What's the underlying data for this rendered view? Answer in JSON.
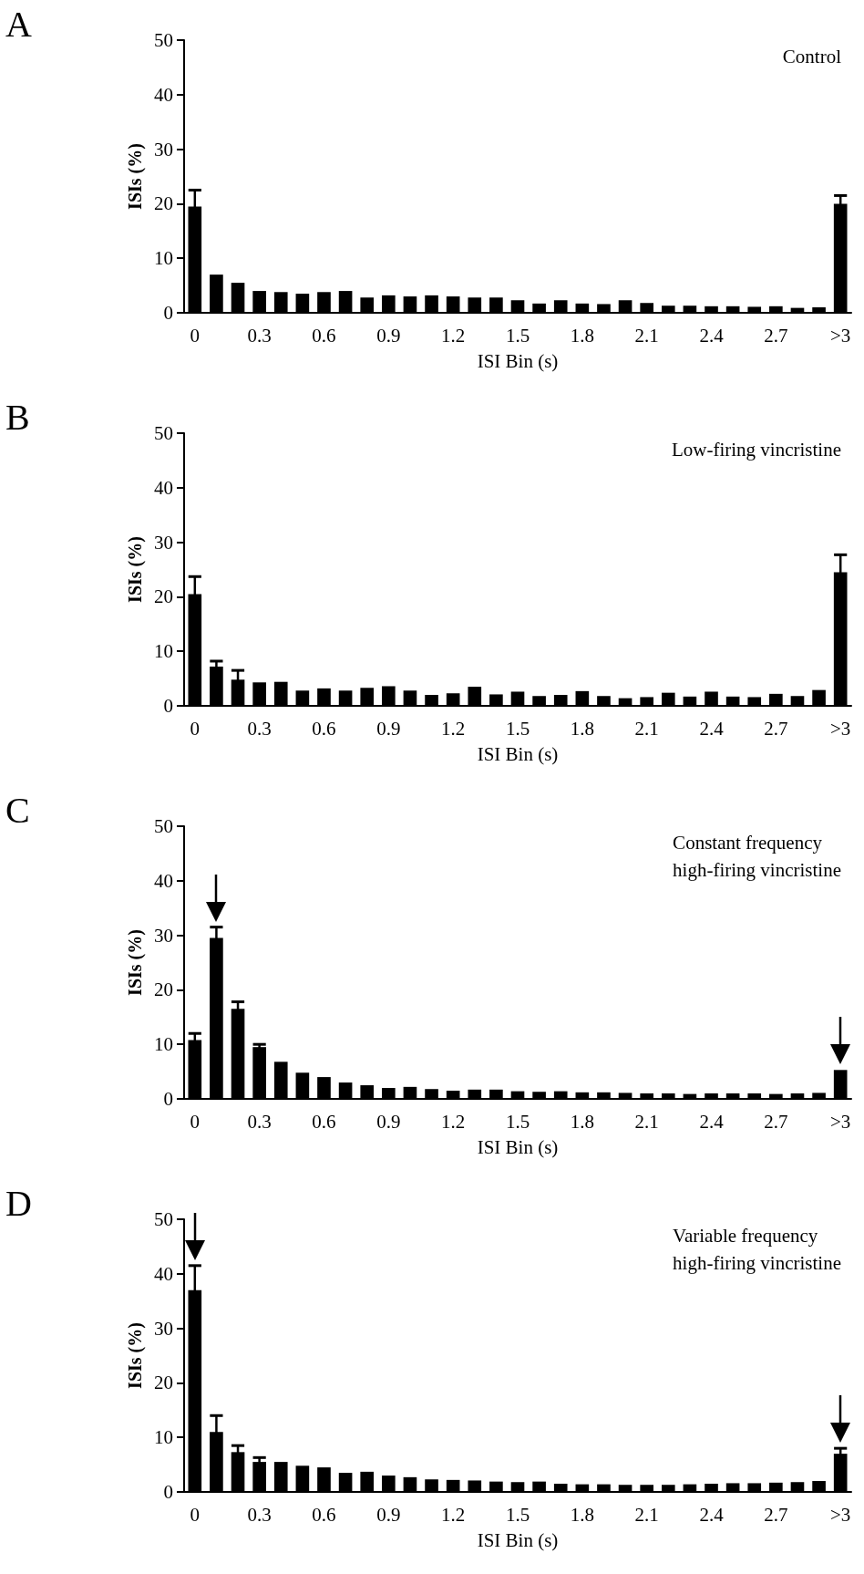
{
  "chart_data": [
    {
      "type": "bar",
      "title": "Control",
      "annotations": [
        "A"
      ],
      "xlabel": "ISI Bin (s)",
      "ylabel": "ISIs (%)",
      "color": "#000000",
      "categories": [
        "0",
        null,
        null,
        "0.3",
        null,
        null,
        "0.6",
        null,
        null,
        "0.9",
        null,
        null,
        "1.2",
        null,
        null,
        "1.5",
        null,
        null,
        "1.8",
        null,
        null,
        "2.1",
        null,
        null,
        "2.4",
        null,
        null,
        "2.7",
        null,
        null,
        ">3"
      ],
      "values": [
        19.5,
        7,
        5.5,
        4,
        3.8,
        3.5,
        3.8,
        4,
        2.8,
        3.2,
        3,
        3.2,
        3,
        2.8,
        2.8,
        2.3,
        1.7,
        2.3,
        1.7,
        1.6,
        2.3,
        1.8,
        1.3,
        1.3,
        1.2,
        1.2,
        1.1,
        1.2,
        0.9,
        1,
        20
      ],
      "errors": [
        3,
        null,
        null,
        null,
        null,
        null,
        null,
        null,
        null,
        null,
        null,
        null,
        null,
        null,
        null,
        null,
        null,
        null,
        null,
        null,
        null,
        null,
        null,
        null,
        null,
        null,
        null,
        null,
        null,
        null,
        1.5
      ],
      "ylim": [
        0,
        50
      ],
      "yticks": [
        0,
        10,
        20,
        30,
        40,
        50
      ]
    },
    {
      "type": "bar",
      "title": "Low-firing vincristine",
      "annotations": [
        "B"
      ],
      "xlabel": "ISI Bin (s)",
      "ylabel": "ISIs (%)",
      "color": "#000000",
      "categories": [
        "0",
        null,
        null,
        "0.3",
        null,
        null,
        "0.6",
        null,
        null,
        "0.9",
        null,
        null,
        "1.2",
        null,
        null,
        "1.5",
        null,
        null,
        "1.8",
        null,
        null,
        "2.1",
        null,
        null,
        "2.4",
        null,
        null,
        "2.7",
        null,
        null,
        ">3"
      ],
      "values": [
        20.5,
        7.2,
        4.8,
        4.3,
        4.4,
        2.8,
        3.2,
        2.8,
        3.3,
        3.6,
        2.8,
        2,
        2.3,
        3.5,
        2.1,
        2.6,
        1.8,
        2,
        2.7,
        1.8,
        1.4,
        1.6,
        2.4,
        1.7,
        2.6,
        1.7,
        1.6,
        2.2,
        1.8,
        2.9,
        24.5
      ],
      "errors": [
        3.2,
        1,
        1.7,
        null,
        null,
        null,
        null,
        null,
        null,
        null,
        null,
        null,
        null,
        null,
        null,
        null,
        null,
        null,
        null,
        null,
        null,
        null,
        null,
        null,
        null,
        null,
        null,
        null,
        null,
        null,
        3.2
      ],
      "ylim": [
        0,
        50
      ],
      "yticks": [
        0,
        10,
        20,
        30,
        40,
        50
      ]
    },
    {
      "type": "bar",
      "title": "Constant frequency\nhigh-firing vincristine",
      "annotations": [
        "C"
      ],
      "xlabel": "ISI Bin (s)",
      "ylabel": "ISIs (%)",
      "color": "#000000",
      "categories": [
        "0",
        null,
        null,
        "0.3",
        null,
        null,
        "0.6",
        null,
        null,
        "0.9",
        null,
        null,
        "1.2",
        null,
        null,
        "1.5",
        null,
        null,
        "1.8",
        null,
        null,
        "2.1",
        null,
        null,
        "2.4",
        null,
        null,
        "2.7",
        null,
        null,
        ">3"
      ],
      "values": [
        10.8,
        29.5,
        16.5,
        9.5,
        6.8,
        4.8,
        4,
        3,
        2.5,
        2,
        2.2,
        1.8,
        1.5,
        1.7,
        1.7,
        1.4,
        1.3,
        1.4,
        1.2,
        1.2,
        1.1,
        1,
        1,
        0.9,
        1,
        1,
        1,
        0.9,
        1,
        1.1,
        5.3
      ],
      "errors": [
        1.2,
        2,
        1.3,
        0.5,
        null,
        null,
        null,
        null,
        null,
        null,
        null,
        null,
        null,
        null,
        null,
        null,
        null,
        null,
        null,
        null,
        null,
        null,
        null,
        null,
        null,
        null,
        null,
        null,
        null,
        null,
        null
      ],
      "ylim": [
        0,
        50
      ],
      "yticks": [
        0,
        10,
        20,
        30,
        40,
        50
      ]
    },
    {
      "type": "bar",
      "title": "Variable frequency\nhigh-firing vincristine",
      "annotations": [
        "D"
      ],
      "xlabel": "ISI Bin (s)",
      "ylabel": "ISIs (%)",
      "color": "#000000",
      "categories": [
        "0",
        null,
        null,
        "0.3",
        null,
        null,
        "0.6",
        null,
        null,
        "0.9",
        null,
        null,
        "1.2",
        null,
        null,
        "1.5",
        null,
        null,
        "1.8",
        null,
        null,
        "2.1",
        null,
        null,
        "2.4",
        null,
        null,
        "2.7",
        null,
        null,
        ">3"
      ],
      "values": [
        37,
        11,
        7.3,
        5.5,
        5.5,
        4.8,
        4.5,
        3.5,
        3.7,
        3,
        2.7,
        2.3,
        2.2,
        2.1,
        1.9,
        1.8,
        1.9,
        1.5,
        1.4,
        1.4,
        1.3,
        1.3,
        1.3,
        1.4,
        1.5,
        1.6,
        1.6,
        1.7,
        1.8,
        2,
        7
      ],
      "errors": [
        4.5,
        3,
        1.2,
        0.8,
        null,
        null,
        null,
        null,
        null,
        null,
        null,
        null,
        null,
        null,
        null,
        null,
        null,
        null,
        null,
        null,
        null,
        null,
        null,
        null,
        null,
        null,
        null,
        null,
        null,
        null,
        1
      ],
      "ylim": [
        0,
        50
      ],
      "yticks": [
        0,
        10,
        20,
        30,
        40,
        50
      ]
    }
  ]
}
